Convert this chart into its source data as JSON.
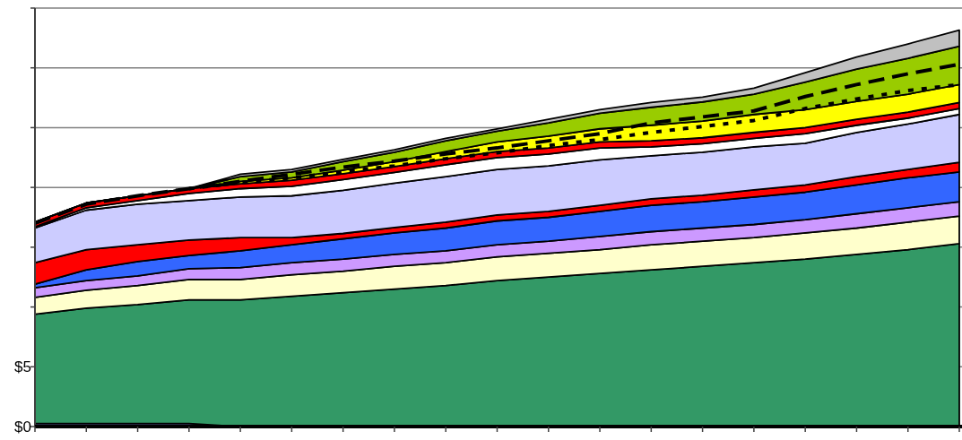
{
  "chart_data": {
    "type": "area",
    "stacked": true,
    "categories": [
      null,
      null,
      null,
      null,
      null,
      null,
      null,
      null,
      null,
      null,
      null,
      null,
      null,
      null,
      null,
      null,
      null,
      null,
      null
    ],
    "ylim": [
      0,
      35
    ],
    "yticks": [
      {
        "value": 0,
        "label": "$0"
      },
      {
        "value": 5,
        "label": "$5"
      },
      {
        "value": 10,
        "label": null
      },
      {
        "value": 15,
        "label": null
      },
      {
        "value": 20,
        "label": null
      },
      {
        "value": 25,
        "label": null
      },
      {
        "value": 30,
        "label": null
      },
      {
        "value": 35,
        "label": null
      }
    ],
    "tick_labels": "y",
    "grid": "y",
    "series": [
      {
        "color": "#9999ff",
        "values": [
          0.25,
          0.25,
          0.25,
          0.25,
          0,
          0,
          0,
          0,
          0,
          0,
          0,
          0,
          0,
          0,
          0,
          0,
          0,
          0,
          0
        ]
      },
      {
        "color": "#339966",
        "values": [
          9.15,
          9.65,
          9.95,
          10.35,
          10.6,
          10.9,
          11.2,
          11.5,
          11.8,
          12.2,
          12.5,
          12.8,
          13.1,
          13.4,
          13.7,
          14.0,
          14.4,
          14.8,
          15.3
        ]
      },
      {
        "color": "#ffffcc",
        "values": [
          1.4,
          1.5,
          1.6,
          1.7,
          1.7,
          1.8,
          1.8,
          1.9,
          1.9,
          2.0,
          2.0,
          2.0,
          2.1,
          2.1,
          2.1,
          2.2,
          2.2,
          2.3,
          2.3
        ]
      },
      {
        "color": "#cc99ff",
        "values": [
          0.8,
          0.8,
          0.8,
          0.9,
          1.0,
          1.0,
          1.0,
          1.0,
          1.0,
          1.0,
          1.0,
          1.1,
          1.1,
          1.1,
          1.1,
          1.1,
          1.2,
          1.2,
          1.2
        ]
      },
      {
        "color": "#3366ff",
        "values": [
          0.3,
          0.9,
          1.2,
          1.1,
          1.4,
          1.5,
          1.7,
          1.8,
          1.9,
          2.0,
          2.0,
          2.1,
          2.2,
          2.2,
          2.3,
          2.3,
          2.4,
          2.5,
          2.5
        ]
      },
      {
        "color": "#ff0000",
        "values": [
          1.8,
          1.7,
          1.4,
          1.3,
          1.1,
          0.6,
          0.45,
          0.45,
          0.5,
          0.5,
          0.5,
          0.5,
          0.55,
          0.55,
          0.6,
          0.6,
          0.7,
          0.7,
          0.8
        ]
      },
      {
        "color": "#ccccff",
        "values": [
          2.9,
          3.3,
          3.4,
          3.3,
          3.4,
          3.5,
          3.6,
          3.7,
          3.8,
          3.8,
          3.8,
          3.8,
          3.6,
          3.6,
          3.6,
          3.5,
          3.7,
          3.8,
          4.0
        ]
      },
      {
        "color": "#ffffff",
        "values": [
          0.1,
          0.2,
          0.3,
          0.6,
          0.7,
          0.8,
          0.9,
          0.9,
          1.0,
          1.0,
          1.0,
          1.0,
          0.75,
          0.7,
          0.7,
          0.8,
          0.6,
          0.5,
          0.5
        ]
      },
      {
        "color": "#ff0000",
        "values": [
          0.4,
          0.4,
          0.4,
          0.4,
          0.4,
          0.5,
          0.5,
          0.5,
          0.5,
          0.5,
          0.5,
          0.5,
          0.5,
          0.5,
          0.5,
          0.5,
          0.5,
          0.5,
          0.5
        ]
      },
      {
        "color": "#ffff00",
        "values": [
          0,
          0,
          0,
          0,
          0.2,
          0.2,
          0.3,
          0.4,
          0.6,
          0.8,
          1.0,
          1.1,
          1.3,
          1.4,
          1.5,
          1.5,
          1.5,
          1.5,
          1.5
        ]
      },
      {
        "color": "#99cc00",
        "values": [
          0,
          0,
          0,
          0,
          0.4,
          0.5,
          0.7,
          0.8,
          0.9,
          0.9,
          1.1,
          1.3,
          1.5,
          1.6,
          1.7,
          2.3,
          2.7,
          3.0,
          3.2
        ]
      },
      {
        "color": "#c0c0c0",
        "values": [
          0,
          0,
          0,
          0,
          0.2,
          0.2,
          0.2,
          0.2,
          0.2,
          0.2,
          0.3,
          0.3,
          0.4,
          0.4,
          0.5,
          0.8,
          1.0,
          1.2,
          1.35
        ]
      },
      {
        "type": "line",
        "line_style": "dashed",
        "color": "#000000",
        "values": [
          17.0,
          18.6,
          19.3,
          19.9,
          20.5,
          21.1,
          21.7,
          22.2,
          22.8,
          23.3,
          23.9,
          24.5,
          25.4,
          25.9,
          26.4,
          27.6,
          28.6,
          29.5,
          30.3
        ]
      },
      {
        "type": "line",
        "line_style": "dotted",
        "color": "#000000",
        "values": [
          null,
          null,
          null,
          19.9,
          20.4,
          20.8,
          21.3,
          21.8,
          22.4,
          22.9,
          23.5,
          24.0,
          24.6,
          25.1,
          25.6,
          26.6,
          27.4,
          28.1,
          28.6
        ]
      }
    ]
  }
}
